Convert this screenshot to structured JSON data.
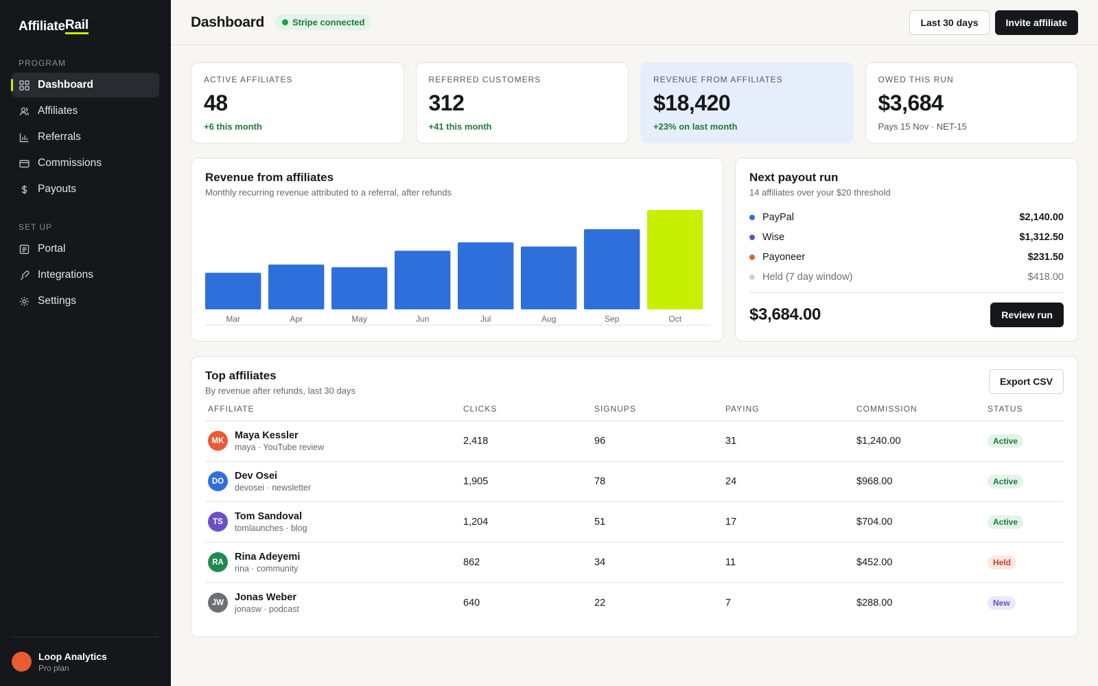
{
  "brand": {
    "prefix": "Affiliate",
    "suffix": "Rail"
  },
  "sidebar": {
    "program_label": "PROGRAM",
    "program_items": [
      {
        "label": "Dashboard",
        "icon": "grid-icon",
        "active": true
      },
      {
        "label": "Affiliates",
        "icon": "users-icon"
      },
      {
        "label": "Referrals",
        "icon": "bar-chart-icon"
      },
      {
        "label": "Commissions",
        "icon": "card-icon"
      },
      {
        "label": "Payouts",
        "icon": "dollar-icon"
      }
    ],
    "setup_label": "SET UP",
    "setup_items": [
      {
        "label": "Portal",
        "icon": "portal-icon"
      },
      {
        "label": "Integrations",
        "icon": "link-icon"
      },
      {
        "label": "Settings",
        "icon": "gear-icon"
      }
    ],
    "account": {
      "name": "Loop Analytics",
      "plan": "Pro plan"
    }
  },
  "header": {
    "title": "Dashboard",
    "status": "Stripe connected",
    "range_button": "Last 30 days",
    "invite_button": "Invite affiliate"
  },
  "stats": [
    {
      "label": "ACTIVE AFFILIATES",
      "value": "48",
      "sub": "+6 this month"
    },
    {
      "label": "REFERRED CUSTOMERS",
      "value": "312",
      "sub": "+41 this month"
    },
    {
      "label": "REVENUE FROM AFFILIATES",
      "value": "$18,420",
      "sub": "+23% on last month"
    },
    {
      "label": "OWED THIS RUN",
      "value": "$3,684",
      "sub": "Pays 15 Nov · NET-15"
    }
  ],
  "revenue_card": {
    "title": "Revenue from affiliates",
    "subtitle": "Monthly recurring revenue attributed to a referral, after refunds"
  },
  "chart_data": {
    "type": "bar",
    "categories": [
      "Mar",
      "Apr",
      "May",
      "Jun",
      "Jul",
      "Aug",
      "Sep",
      "Oct"
    ],
    "values": [
      36.8,
      45.1,
      42.4,
      59.0,
      67.4,
      63.2,
      80.6,
      100
    ],
    "ylim": [
      0,
      100
    ],
    "highlight_index": 7,
    "colors": {
      "bar": "#2f6fdb",
      "highlight": "#c6f000",
      "axis": "#e0ded8"
    },
    "grid": false
  },
  "payout_card": {
    "title": "Next payout run",
    "subtitle": "14 affiliates over your $20 threshold",
    "methods": [
      {
        "name": "PayPal",
        "amount": "$2,140.00",
        "color": "#2f6fdb"
      },
      {
        "name": "Wise",
        "amount": "$1,312.50",
        "color": "#6b4fc9"
      },
      {
        "name": "Payoneer",
        "amount": "$231.50",
        "color": "#ea5a35"
      },
      {
        "name": "Held (7 day window)",
        "amount": "$418.00",
        "color": "#d2d1cc",
        "muted": true
      }
    ],
    "total": "$3,684.00",
    "review_button": "Review run"
  },
  "table": {
    "title": "Top affiliates",
    "subtitle": "By revenue after refunds, last 30 days",
    "export_button": "Export CSV",
    "columns": [
      "AFFILIATE",
      "CLICKS",
      "SIGNUPS",
      "PAYING",
      "COMMISSION",
      "STATUS"
    ],
    "rows": [
      {
        "initials": "MK",
        "color": "#ea5a35",
        "name": "Maya Kessler",
        "meta": "maya · YouTube review",
        "clicks": "2,418",
        "signups": "96",
        "paying": "31",
        "commission": "$1,240.00",
        "status": "Active",
        "status_kind": "active"
      },
      {
        "initials": "DO",
        "color": "#2f6fdb",
        "name": "Dev Osei",
        "meta": "devosei · newsletter",
        "clicks": "1,905",
        "signups": "78",
        "paying": "24",
        "commission": "$968.00",
        "status": "Active",
        "status_kind": "active"
      },
      {
        "initials": "TS",
        "color": "#6b4fc9",
        "name": "Tom Sandoval",
        "meta": "tomlaunches · blog",
        "clicks": "1,204",
        "signups": "51",
        "paying": "17",
        "commission": "$704.00",
        "status": "Active",
        "status_kind": "active"
      },
      {
        "initials": "RA",
        "color": "#1f8a4c",
        "name": "Rina Adeyemi",
        "meta": "rina · community",
        "clicks": "862",
        "signups": "34",
        "paying": "11",
        "commission": "$452.00",
        "status": "Held",
        "status_kind": "held"
      },
      {
        "initials": "JW",
        "color": "#6e6f75",
        "name": "Jonas Weber",
        "meta": "jonasw · podcast",
        "clicks": "640",
        "signups": "22",
        "paying": "7",
        "commission": "$288.00",
        "status": "New",
        "status_kind": "new"
      }
    ]
  }
}
